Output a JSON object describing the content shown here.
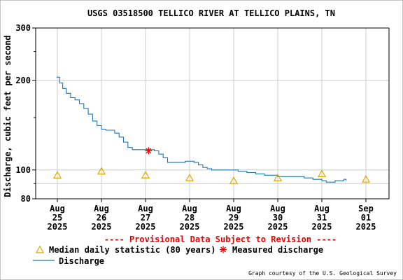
{
  "chart_data": {
    "type": "line",
    "title": "USGS 03518500 TELLICO RIVER AT TELLICO PLAINS, TN",
    "ylabel": "Discharge, cubic feet per second",
    "ylim": [
      80,
      300
    ],
    "y_scale": "log",
    "y_ticks": [
      "300",
      "200",
      "100",
      "80"
    ],
    "x_ticks": [
      [
        "Aug",
        "25",
        "2025"
      ],
      [
        "Aug",
        "26",
        "2025"
      ],
      [
        "Aug",
        "27",
        "2025"
      ],
      [
        "Aug",
        "28",
        "2025"
      ],
      [
        "Aug",
        "29",
        "2025"
      ],
      [
        "Aug",
        "30",
        "2025"
      ],
      [
        "Aug",
        "31",
        "2025"
      ],
      [
        "Sep",
        "01",
        "2025"
      ]
    ],
    "grid": true,
    "provisional_note": "---- Provisional Data Subject to Revision ----",
    "legend": {
      "median": "Median daily statistic (80 years)",
      "measured": "Measured discharge",
      "discharge": "Discharge"
    },
    "credit": "Graph courtesy of the U.S. Geological Survey",
    "series": [
      {
        "name": "Discharge",
        "color": "#1f77b4",
        "points": [
          [
            -0.02,
            205
          ],
          [
            0.05,
            196
          ],
          [
            0.12,
            188
          ],
          [
            0.2,
            181
          ],
          [
            0.3,
            175
          ],
          [
            0.4,
            172
          ],
          [
            0.5,
            167
          ],
          [
            0.6,
            161
          ],
          [
            0.7,
            154
          ],
          [
            0.8,
            146
          ],
          [
            0.9,
            141
          ],
          [
            1.0,
            137
          ],
          [
            1.1,
            136
          ],
          [
            1.2,
            136
          ],
          [
            1.3,
            133
          ],
          [
            1.4,
            129
          ],
          [
            1.5,
            124
          ],
          [
            1.6,
            119
          ],
          [
            1.7,
            117
          ],
          [
            1.8,
            117
          ],
          [
            1.9,
            117
          ],
          [
            2.0,
            117
          ],
          [
            2.1,
            117
          ],
          [
            2.2,
            116
          ],
          [
            2.3,
            113
          ],
          [
            2.4,
            110
          ],
          [
            2.5,
            106
          ],
          [
            2.6,
            106
          ],
          [
            2.7,
            106
          ],
          [
            2.8,
            106
          ],
          [
            2.9,
            107
          ],
          [
            3.0,
            107
          ],
          [
            3.1,
            106
          ],
          [
            3.2,
            104
          ],
          [
            3.3,
            102
          ],
          [
            3.4,
            101
          ],
          [
            3.5,
            100
          ],
          [
            3.7,
            100
          ],
          [
            3.9,
            100
          ],
          [
            4.0,
            100
          ],
          [
            4.1,
            99
          ],
          [
            4.3,
            98
          ],
          [
            4.5,
            97
          ],
          [
            4.7,
            96
          ],
          [
            4.9,
            96
          ],
          [
            5.0,
            95
          ],
          [
            5.2,
            95
          ],
          [
            5.4,
            95
          ],
          [
            5.5,
            95
          ],
          [
            5.6,
            94
          ],
          [
            5.8,
            93
          ],
          [
            5.9,
            93
          ],
          [
            6.0,
            92
          ],
          [
            6.1,
            91
          ],
          [
            6.2,
            91
          ],
          [
            6.3,
            92
          ],
          [
            6.4,
            92
          ],
          [
            6.5,
            93
          ],
          [
            6.55,
            92
          ]
        ]
      },
      {
        "name": "Median daily statistic (80 years)",
        "color": "#e0a800",
        "points": [
          [
            0,
            96
          ],
          [
            1,
            99
          ],
          [
            2,
            96
          ],
          [
            3,
            94
          ],
          [
            4,
            92
          ],
          [
            5,
            94
          ],
          [
            6,
            97
          ],
          [
            7,
            93
          ]
        ]
      },
      {
        "name": "Measured discharge",
        "color": "#ee0000",
        "points": [
          [
            2.07,
            116
          ]
        ]
      }
    ]
  },
  "colors": {
    "frame": "#000000",
    "grid": "#cccccc",
    "discharge": "#1f77b4",
    "median": "#e0a800",
    "measured": "#ee0000",
    "provisional": "#ee0000"
  }
}
